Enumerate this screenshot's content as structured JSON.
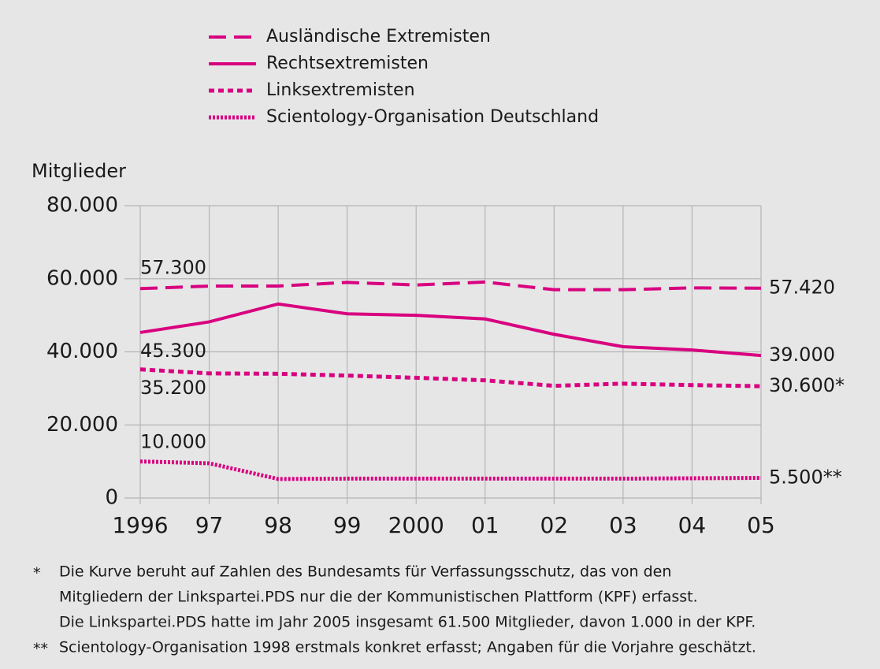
{
  "chart_data": {
    "type": "line",
    "y_label": "Mitglieder",
    "categories": [
      "1996",
      "97",
      "98",
      "99",
      "2000",
      "01",
      "02",
      "03",
      "04",
      "05"
    ],
    "series": [
      {
        "name": "Ausländische Extremisten",
        "color": "#d8007f",
        "style": "dashed",
        "values": [
          57300,
          58000,
          58000,
          59000,
          58300,
          59100,
          57000,
          57000,
          57500,
          57420
        ],
        "value_labels": [
          "57.300",
          null,
          null,
          null,
          null,
          null,
          null,
          null,
          null,
          "57.420"
        ]
      },
      {
        "name": "Rechtsextremisten",
        "color": "#d8007f",
        "style": "solid",
        "values": [
          45300,
          48200,
          53100,
          50400,
          50000,
          49000,
          44800,
          41400,
          40500,
          39000
        ],
        "value_labels": [
          "45.300",
          null,
          null,
          null,
          null,
          null,
          null,
          null,
          null,
          "39.000"
        ]
      },
      {
        "name": "Linksextremisten",
        "color": "#d8007f",
        "style": "dotted",
        "values": [
          35200,
          34100,
          34000,
          33500,
          32900,
          32200,
          30700,
          31300,
          30900,
          30600
        ],
        "value_labels": [
          "35.200",
          null,
          null,
          null,
          null,
          null,
          null,
          null,
          null,
          "30.600*"
        ]
      },
      {
        "name": "Scientology-Organisation Deutschland",
        "color": "#d8007f",
        "style": "fine-dotted",
        "values": [
          10000,
          9500,
          5200,
          5300,
          5300,
          5300,
          5300,
          5300,
          5400,
          5500
        ],
        "value_labels": [
          "10.000",
          null,
          null,
          null,
          null,
          null,
          null,
          null,
          null,
          "5.500**"
        ]
      }
    ],
    "ylim": [
      0,
      80000
    ],
    "yticks": [
      0,
      {
        "value": 20000,
        "label": "20.000"
      },
      {
        "value": 40000,
        "label": "40.000"
      },
      {
        "value": 60000,
        "label": "60.000"
      },
      {
        "value": 80000,
        "label": "80.000"
      }
    ],
    "grid": true,
    "notes": [
      {
        "marker": "*",
        "lines": [
          "Die Kurve beruht auf Zahlen des Bundesamts für Verfassungsschutz, das von den",
          "Mitgliedern der Linkspartei.PDS nur die der Kommunistischen Plattform (KPF) erfasst.",
          "Die Linkspartei.PDS hatte im Jahr 2005 insgesamt 61.500 Mitglieder, davon 1.000 in der KPF."
        ]
      },
      {
        "marker": "**",
        "lines": [
          "Scientology-Organisation 1998 erstmals konkret erfasst; Angaben für die Vorjahre geschätzt."
        ]
      }
    ]
  }
}
